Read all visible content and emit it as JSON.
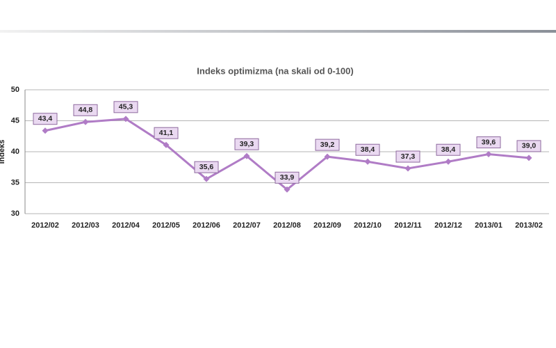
{
  "chart_data": {
    "type": "line",
    "title": "Indeks optimizma (na skali od 0-100)",
    "y_label": "Indeks",
    "categories": [
      "2012/02",
      "2012/03",
      "2012/04",
      "2012/05",
      "2012/06",
      "2012/07",
      "2012/08",
      "2012/09",
      "2012/10",
      "2012/11",
      "2012/12",
      "2013/01",
      "2013/02"
    ],
    "values": [
      43.4,
      44.8,
      45.3,
      41.1,
      35.6,
      39.3,
      33.9,
      39.2,
      38.4,
      37.3,
      38.4,
      39.6,
      39.0
    ],
    "value_labels": [
      "43,4",
      "44,8",
      "45,3",
      "41,1",
      "35,6",
      "39,3",
      "33,9",
      "39,2",
      "38,4",
      "37,3",
      "38,4",
      "39,6",
      "39,0"
    ],
    "color": "#b07cc6",
    "ylim": [
      30,
      50
    ],
    "yticks": [
      30,
      35,
      40,
      45,
      50
    ],
    "grid": true
  }
}
